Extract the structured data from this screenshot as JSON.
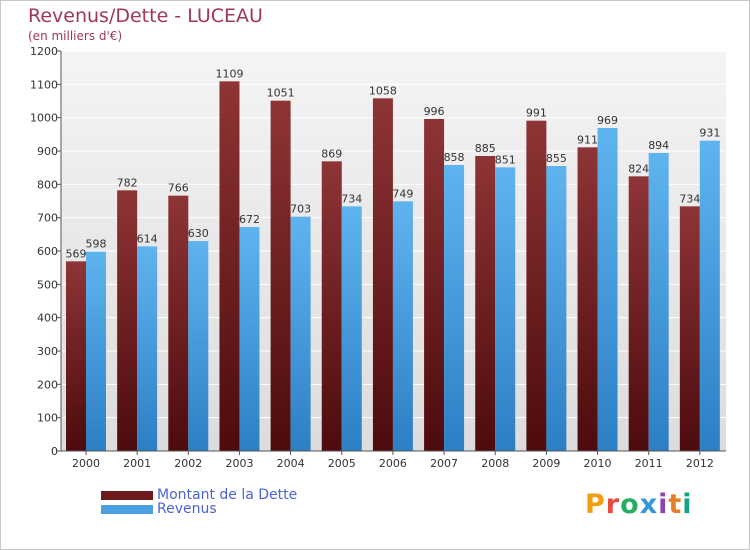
{
  "header": {
    "title": "Revenus/Dette - LUCEAU",
    "subtitle": "(en milliers d'€)"
  },
  "legend": {
    "items": [
      {
        "label": "Montant de la Dette",
        "color": "#6e1a1d"
      },
      {
        "label": "Revenus",
        "color": "#4a9fe0"
      }
    ]
  },
  "logo": {
    "text": "Proxiti",
    "colors": [
      "#f39c12",
      "#e74c3c",
      "#27ae60",
      "#3498db",
      "#8e44ad",
      "#e67e22",
      "#16a085"
    ]
  },
  "chart_data": {
    "type": "bar",
    "title": "Revenus/Dette - LUCEAU",
    "ylabel": "(en milliers d'€)",
    "xlabel": "",
    "categories": [
      "2000",
      "2001",
      "2002",
      "2003",
      "2004",
      "2005",
      "2006",
      "2007",
      "2008",
      "2009",
      "2010",
      "2011",
      "2012"
    ],
    "series": [
      {
        "name": "Montant de la Dette",
        "values": [
          569,
          782,
          766,
          1109,
          1051,
          869,
          1058,
          996,
          885,
          991,
          911,
          824,
          734
        ],
        "color_top": "#8e3436",
        "color_bottom": "#4d0b0d"
      },
      {
        "name": "Revenus",
        "values": [
          598,
          614,
          630,
          672,
          703,
          734,
          749,
          858,
          851,
          855,
          969,
          894,
          931
        ],
        "color_top": "#5fb4ef",
        "color_bottom": "#2d7fc4"
      }
    ],
    "ylim": [
      0,
      1200
    ],
    "yticks": [
      0,
      100,
      200,
      300,
      400,
      500,
      600,
      700,
      800,
      900,
      1000,
      1100,
      1200
    ],
    "grid": true,
    "legend_position": "bottom-left"
  }
}
